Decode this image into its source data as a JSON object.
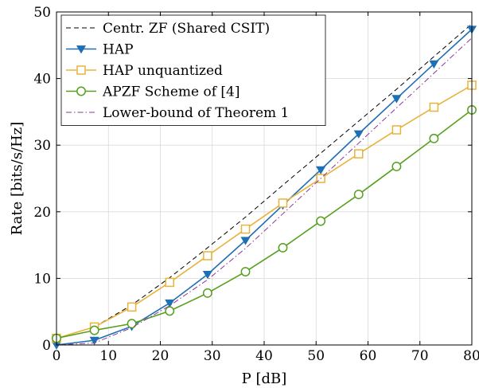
{
  "chart_data": {
    "type": "line",
    "xlabel": "P [dB]",
    "ylabel": "Rate [bits/s/Hz]",
    "xlim": [
      0,
      80
    ],
    "ylim": [
      0,
      50
    ],
    "xticks": [
      0,
      10,
      20,
      30,
      40,
      50,
      60,
      70,
      80
    ],
    "yticks": [
      0,
      10,
      20,
      30,
      40,
      50
    ],
    "grid": true,
    "legend_position": "top-left",
    "series": [
      {
        "name": "Centr. ZF (Shared CSIT)",
        "color": "#000000",
        "style": "dashed",
        "marker": "none",
        "x": [
          0,
          7.3,
          14.5,
          21.8,
          29.1,
          36.4,
          43.6,
          50.9,
          58.2,
          65.5,
          72.7,
          80
        ],
        "y": [
          1.0,
          2.7,
          6.0,
          10.1,
          14.6,
          19.2,
          24.0,
          28.8,
          33.6,
          38.4,
          43.3,
          48.2
        ]
      },
      {
        "name": "HAP",
        "color": "#1f6fb4",
        "style": "solid",
        "marker": "triangle-down",
        "x": [
          0,
          7.3,
          14.5,
          21.8,
          29.1,
          36.4,
          43.6,
          50.9,
          58.2,
          65.5,
          72.7,
          80
        ],
        "y": [
          0.0,
          0.7,
          2.8,
          6.3,
          10.6,
          15.7,
          21.0,
          26.3,
          31.7,
          37.0,
          42.2,
          47.4
        ]
      },
      {
        "name": "HAP unquantized",
        "color": "#e8b33a",
        "style": "solid",
        "marker": "square",
        "x": [
          0,
          7.3,
          14.5,
          21.8,
          29.1,
          36.4,
          43.6,
          50.9,
          58.2,
          65.5,
          72.7,
          80
        ],
        "y": [
          1.0,
          2.7,
          5.7,
          9.4,
          13.4,
          17.4,
          21.3,
          25.0,
          28.7,
          32.3,
          35.7,
          39.0
        ]
      },
      {
        "name": "APZF Scheme of [4]",
        "color": "#57a01e",
        "style": "solid",
        "marker": "circle",
        "x": [
          0,
          7.3,
          14.5,
          21.8,
          29.1,
          36.4,
          43.6,
          50.9,
          58.2,
          65.5,
          72.7,
          80
        ],
        "y": [
          1.0,
          2.2,
          3.2,
          5.1,
          7.8,
          11.0,
          14.6,
          18.6,
          22.6,
          26.8,
          31.0,
          35.3
        ]
      },
      {
        "name": "Lower-bound of Theorem 1",
        "color": "#8a3a9a",
        "style": "dashdot",
        "marker": "none",
        "x": [
          0,
          7.3,
          14.5,
          21.8,
          29.1,
          36.4,
          43.6,
          50.9,
          58.2,
          65.5,
          72.7,
          80
        ],
        "y": [
          0.0,
          0.3,
          2.6,
          5.9,
          9.8,
          14.5,
          19.7,
          25.0,
          30.3,
          35.6,
          40.8,
          46.1
        ]
      }
    ]
  }
}
